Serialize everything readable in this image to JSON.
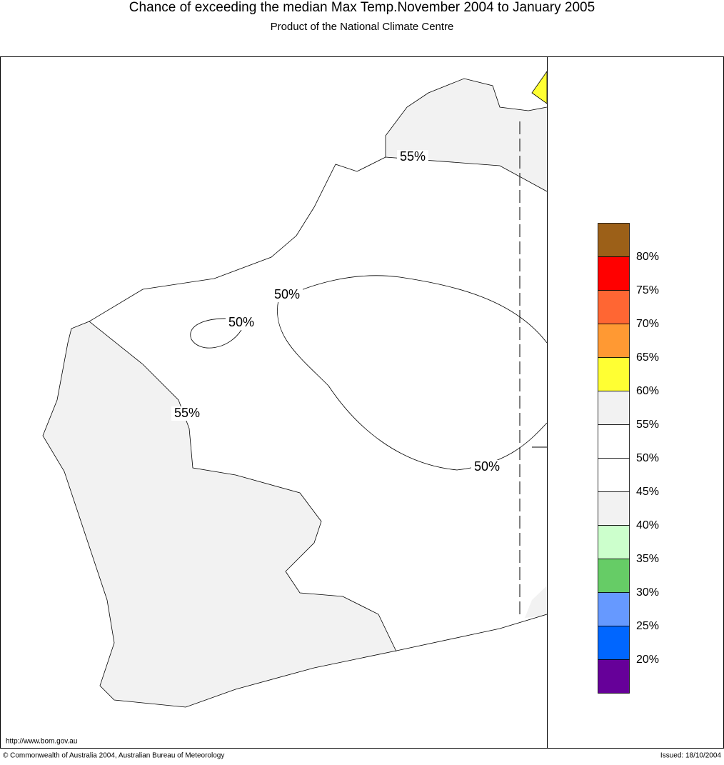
{
  "header": {
    "title": "Chance of exceeding the median Max Temp.November 2004 to January 2005",
    "subtitle": "Product of the National Climate Centre"
  },
  "map": {
    "contour_labels": [
      "55%",
      "50%",
      "50%",
      "55%",
      "50%"
    ]
  },
  "legend": {
    "colors": [
      "#9c6018",
      "#ff0000",
      "#ff6633",
      "#ff9933",
      "#ffff33",
      "#f2f2f2",
      "#ffffff",
      "#ffffff",
      "#f2f2f2",
      "#ccffcc",
      "#66cc66",
      "#6699ff",
      "#0066ff",
      "#660099"
    ],
    "labels": [
      "80%",
      "75%",
      "70%",
      "65%",
      "60%",
      "55%",
      "50%",
      "45%",
      "40%",
      "35%",
      "30%",
      "25%",
      "20%"
    ]
  },
  "footer": {
    "url": "http://www.bom.gov.au",
    "copyright": "© Commonwealth of Australia 2004, Australian Bureau of Meteorology",
    "issued": "Issued: 18/10/2004"
  }
}
